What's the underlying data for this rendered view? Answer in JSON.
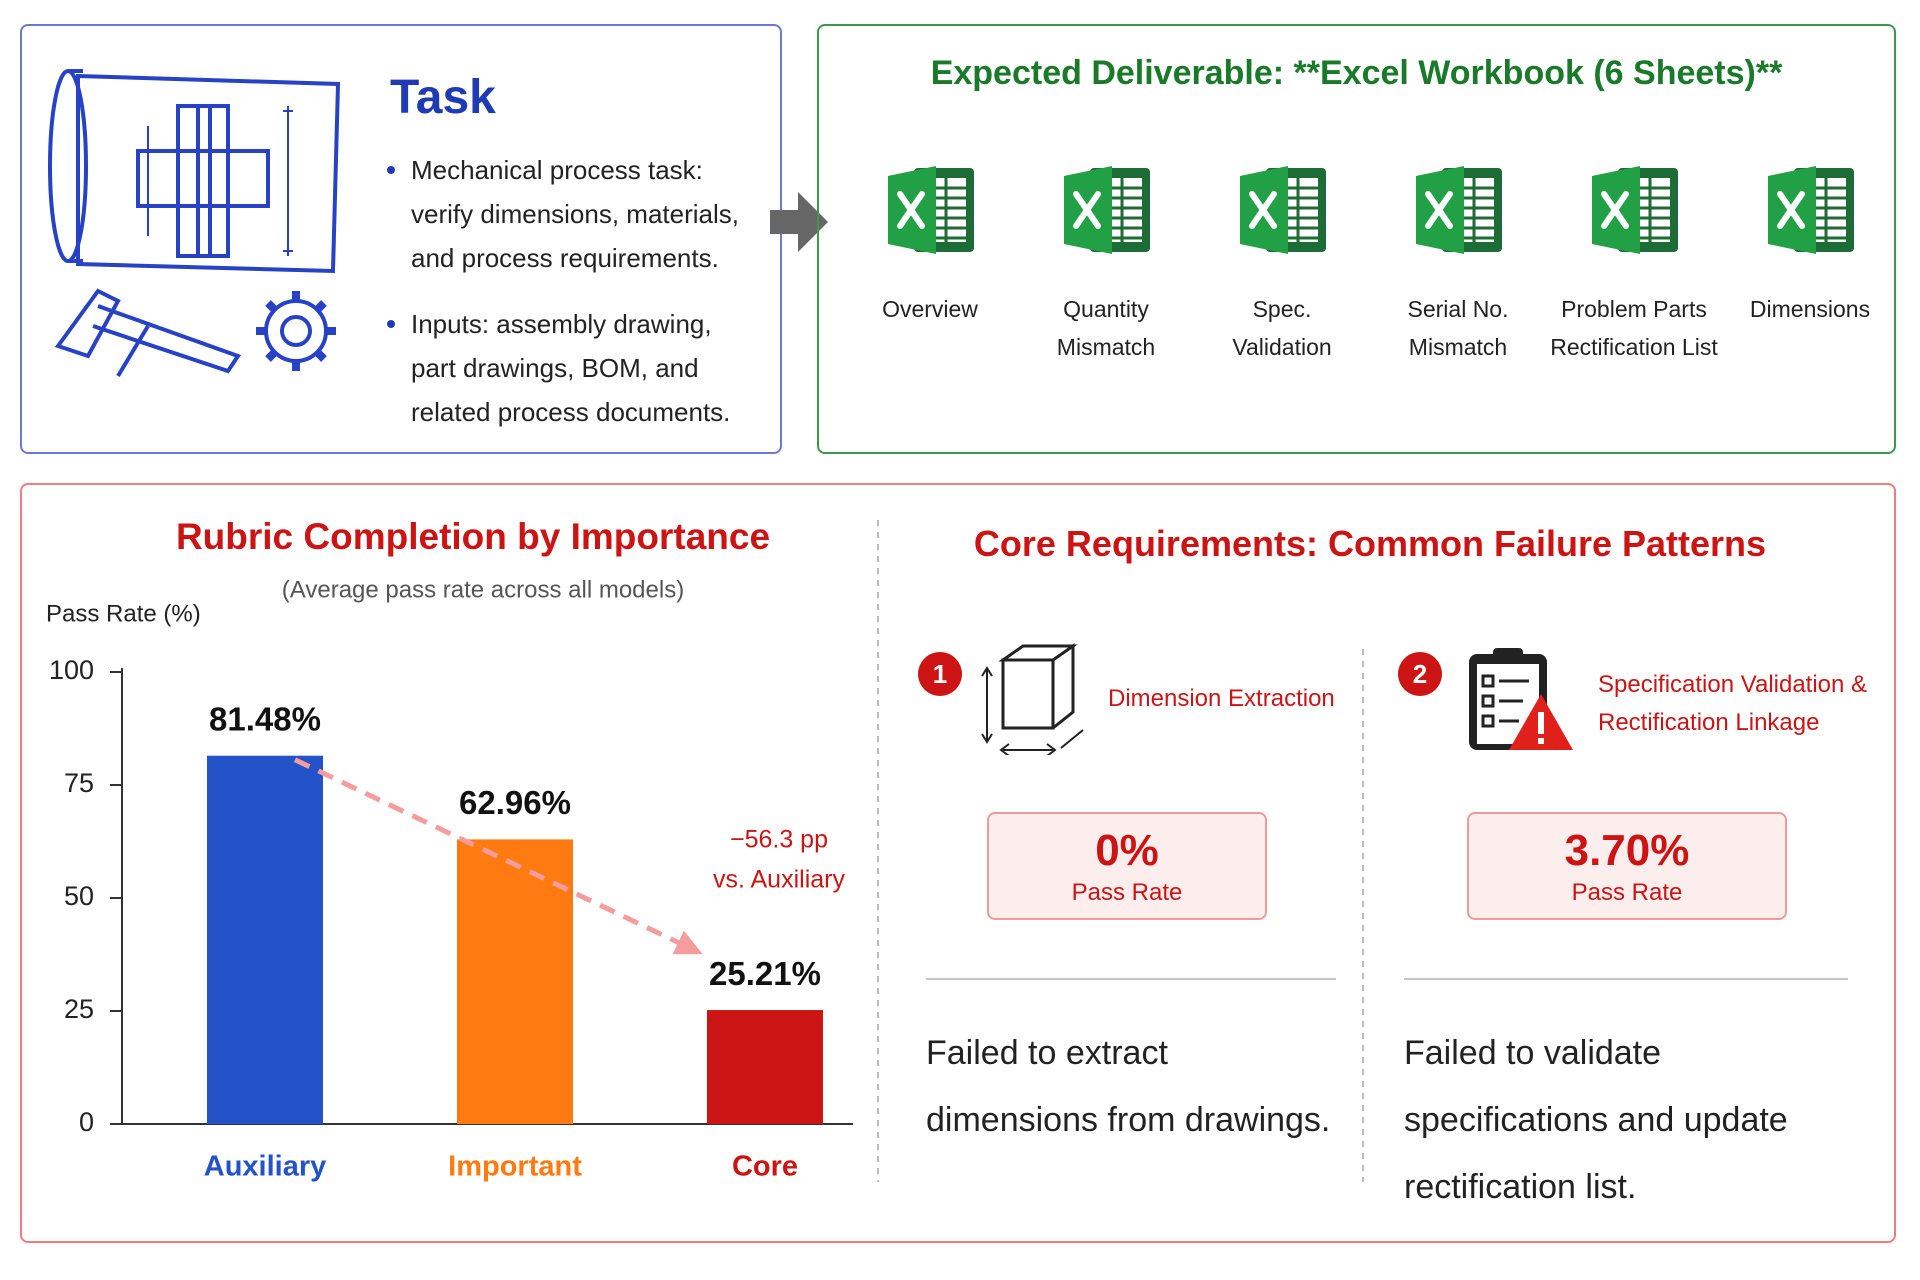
{
  "task": {
    "title": "Task",
    "bullets": [
      "Mechanical process task: verify dimensions, materials, and process requirements.",
      "Inputs: assembly drawing, part drawings, BOM, and related process documents."
    ]
  },
  "deliverable": {
    "title": "Expected Deliverable: **Excel Workbook (6 Sheets)**",
    "sheets": [
      "Overview",
      "Quantity Mismatch",
      "Spec. Validation",
      "Serial No. Mismatch",
      "Problem Parts Rectification List",
      "Dimensions"
    ]
  },
  "chart_data": {
    "type": "bar",
    "title": "Rubric Completion by Importance",
    "subtitle": "(Average pass rate across all models)",
    "y_label": "Pass Rate (%)",
    "categories": [
      "Auxiliary",
      "Important",
      "Core"
    ],
    "values": [
      81.48,
      62.96,
      25.21
    ],
    "value_labels": [
      "81.48%",
      "62.96%",
      "25.21%"
    ],
    "colors": [
      "#2453c9",
      "#ff7a10",
      "#cc1414"
    ],
    "ylim": [
      0,
      100
    ],
    "yticks": [
      0,
      25,
      50,
      75,
      100
    ],
    "annotation": [
      "−56.3 pp",
      "vs. Auxiliary"
    ]
  },
  "failures": {
    "title": "Core Requirements: Common Failure Patterns",
    "items": [
      {
        "number": "1",
        "name": "Dimension Extraction",
        "rate": "0%",
        "caption": "Pass Rate",
        "description": "Failed to extract dimensions from drawings."
      },
      {
        "number": "2",
        "name": "Specification Validation & Rectification Linkage",
        "rate": "3.70%",
        "caption": "Pass Rate",
        "description": "Failed to validate specifications and update rectification list."
      }
    ]
  }
}
